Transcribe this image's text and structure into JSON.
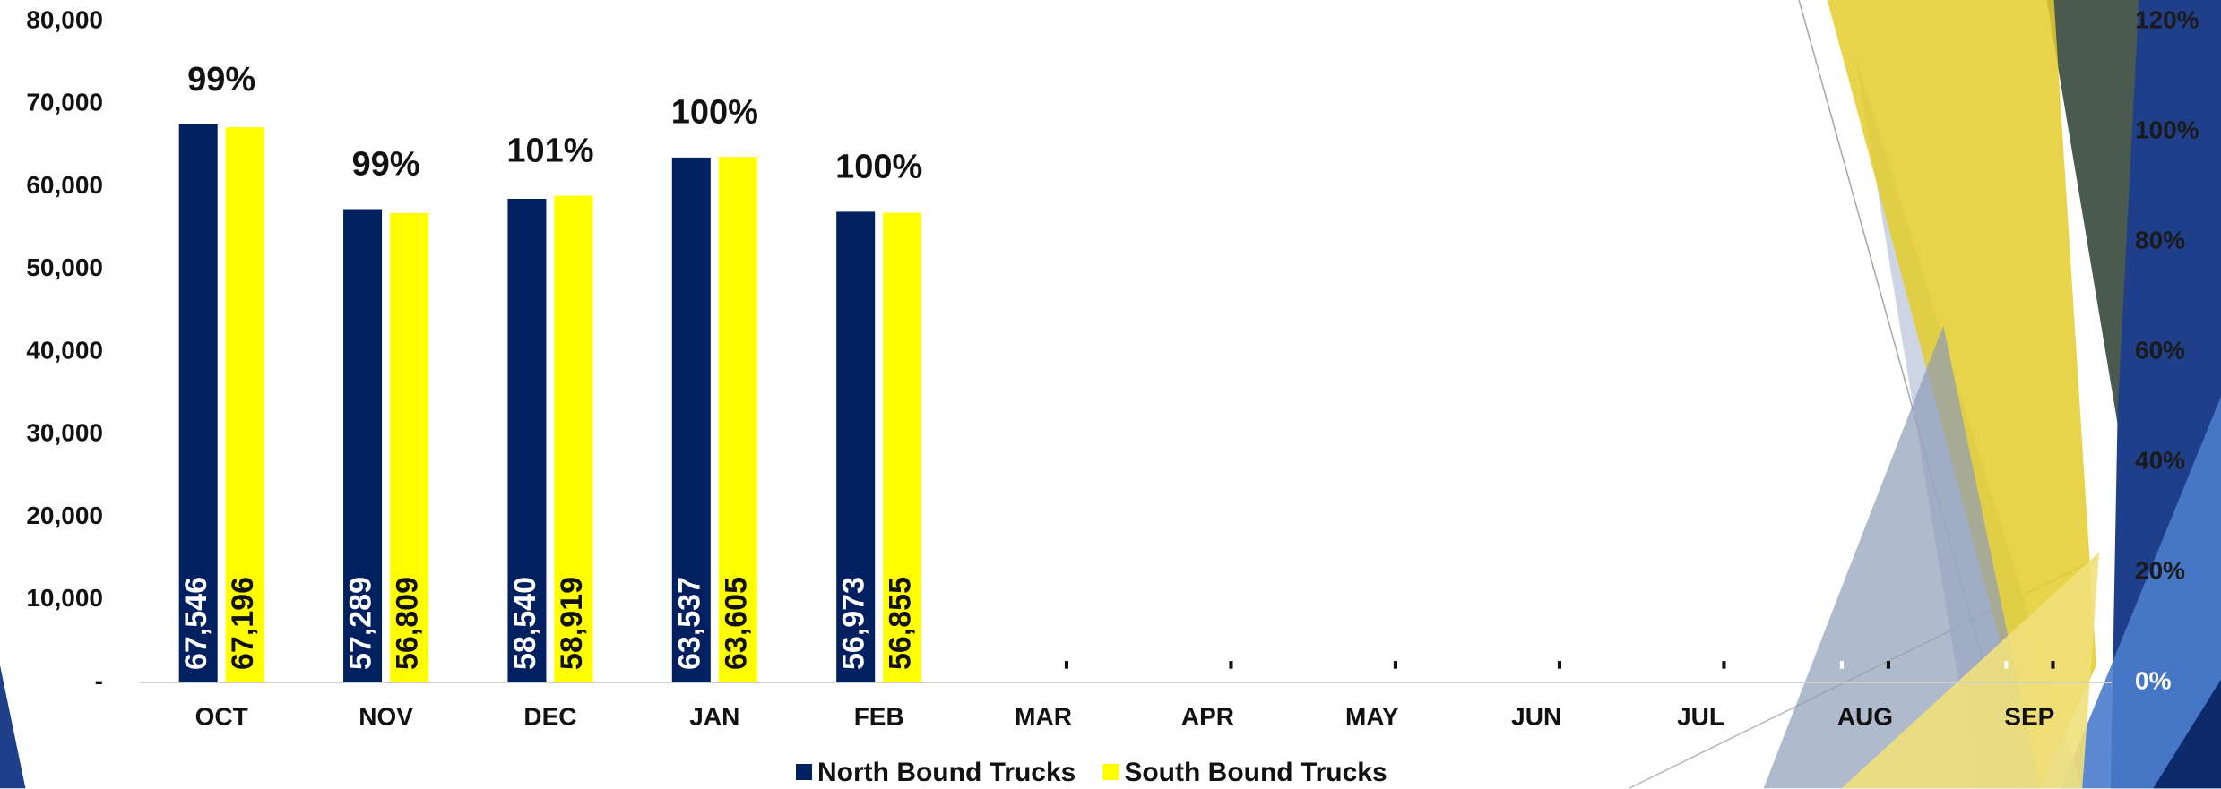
{
  "chart_data": {
    "type": "bar",
    "categories": [
      "OCT",
      "NOV",
      "DEC",
      "JAN",
      "FEB",
      "MAR",
      "APR",
      "MAY",
      "JUN",
      "JUL",
      "AUG",
      "SEP"
    ],
    "series": [
      {
        "name": "North Bound Trucks",
        "color": "#002060",
        "values": [
          67546,
          57289,
          58540,
          63537,
          56973,
          0,
          0,
          0,
          0,
          0,
          0,
          0
        ],
        "value_labels": [
          "67,546",
          "57,289",
          "58,540",
          "63,537",
          "56,973",
          "-",
          "-",
          "-",
          "-",
          "-",
          "-",
          "-"
        ]
      },
      {
        "name": "South Bound Trucks",
        "color": "#ffff00",
        "values": [
          67196,
          56809,
          58919,
          63605,
          56855,
          0,
          0,
          0,
          0,
          0,
          0,
          0
        ],
        "value_labels": [
          "67,196",
          "56,809",
          "58,919",
          "63,605",
          "56,855",
          "-",
          "-",
          "-",
          "-",
          "-",
          "-",
          "-"
        ]
      }
    ],
    "percent_labels": {
      "values": [
        99,
        99,
        101,
        100,
        100
      ],
      "value_labels": [
        "99%",
        "99%",
        "101%",
        "100%",
        "100%"
      ]
    },
    "ylim": [
      0,
      80000
    ],
    "yticks": [
      {
        "value": 0,
        "label": "-"
      },
      {
        "value": 10000,
        "label": "10,000"
      },
      {
        "value": 20000,
        "label": "20,000"
      },
      {
        "value": 30000,
        "label": "30,000"
      },
      {
        "value": 40000,
        "label": "40,000"
      },
      {
        "value": 50000,
        "label": "50,000"
      },
      {
        "value": 60000,
        "label": "60,000"
      },
      {
        "value": 70000,
        "label": "70,000"
      },
      {
        "value": 80000,
        "label": "80,000"
      }
    ],
    "y2lim": [
      0,
      120
    ],
    "y2ticks": [
      {
        "value": 0,
        "label": "0%"
      },
      {
        "value": 20,
        "label": "20%"
      },
      {
        "value": 40,
        "label": "40%"
      },
      {
        "value": 60,
        "label": "60%"
      },
      {
        "value": 80,
        "label": "80%"
      },
      {
        "value": 100,
        "label": "100%"
      },
      {
        "value": 120,
        "label": "120%"
      }
    ],
    "legend": "bottom",
    "grid": false
  }
}
